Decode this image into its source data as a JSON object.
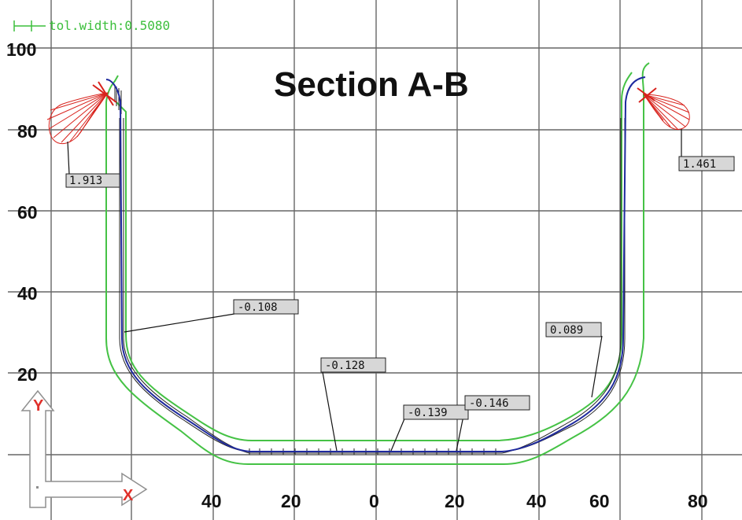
{
  "title": "Section A-B",
  "tolerance_label": "tol.width:0.5080",
  "y_ticks": [
    "100",
    "80",
    "60",
    "40",
    "20"
  ],
  "x_ticks": [
    "40",
    "20",
    "0",
    "20",
    "40",
    "60",
    "80"
  ],
  "triad": {
    "y_label": "Y",
    "x_label": "X"
  },
  "deviation_labels": [
    "1.913",
    "1.461",
    "-0.108",
    "0.089",
    "-0.128",
    "-0.139",
    "-0.146"
  ],
  "colors": {
    "grid": "#666666",
    "nominal_profile": "#1f2a9e",
    "tolerance_band": "#45c245",
    "deviation_hatch": "#222222",
    "deviation_fan": "#d8221c",
    "triad_letters": "#e0302a"
  },
  "icons": {
    "triad": "xy-axis-triad-icon"
  }
}
